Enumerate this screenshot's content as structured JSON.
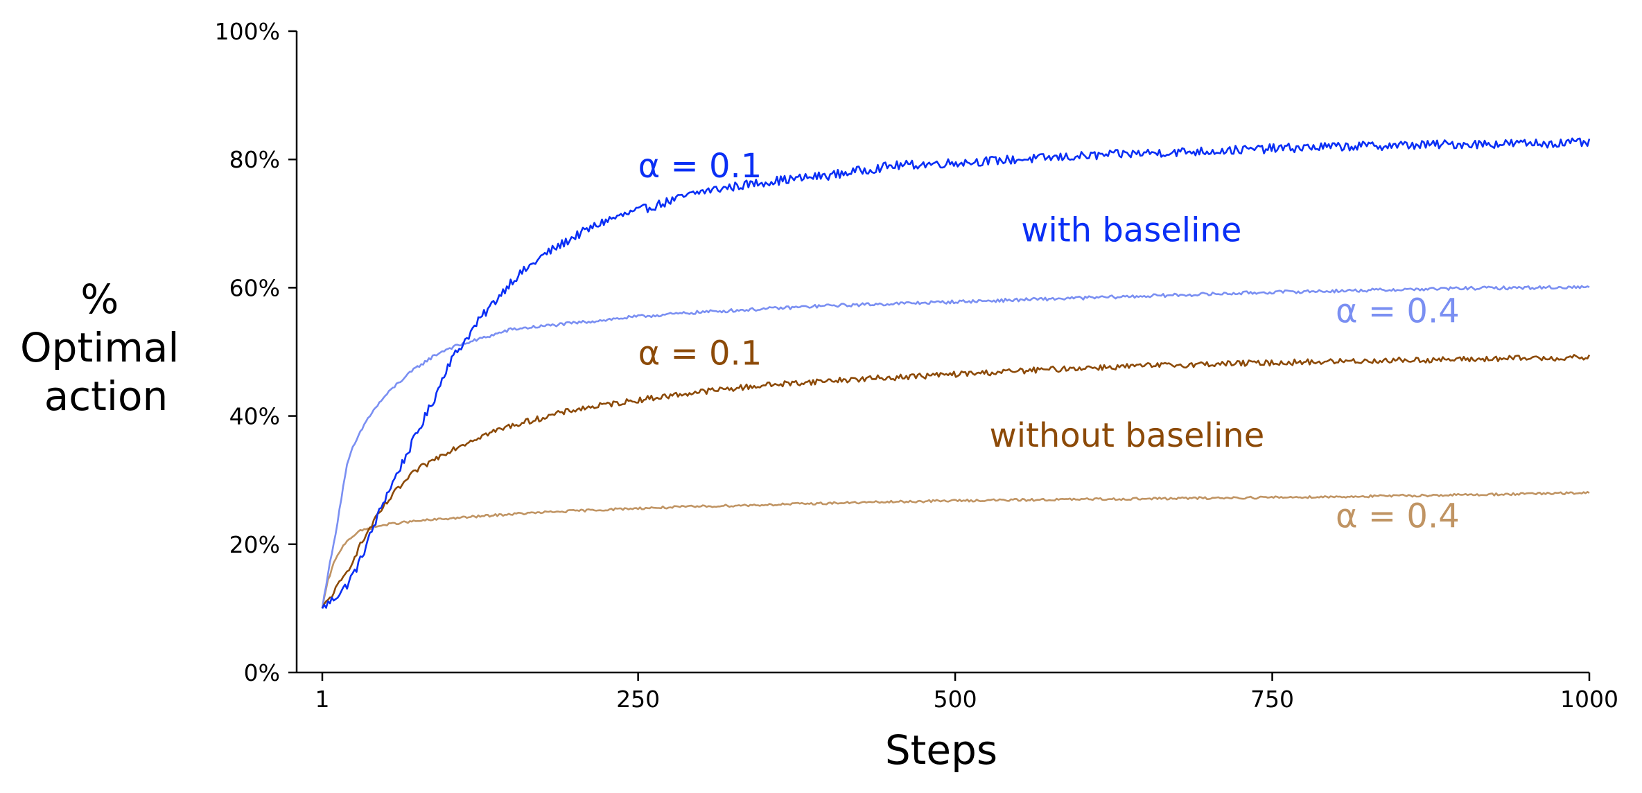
{
  "chart_data": {
    "type": "line",
    "title": "",
    "xlabel": "Steps",
    "ylabel_lines": [
      "%",
      "Optimal",
      "action"
    ],
    "xlim": [
      1,
      1000
    ],
    "ylim": [
      0,
      100
    ],
    "x_ticks": [
      1,
      250,
      500,
      750,
      1000
    ],
    "x_tick_labels": [
      "1",
      "250",
      "500",
      "750",
      "1000"
    ],
    "y_ticks": [
      0,
      20,
      40,
      60,
      80,
      100
    ],
    "y_tick_labels": [
      "0%",
      "20%",
      "40%",
      "60%",
      "80%",
      "100%"
    ],
    "grid": false,
    "series": [
      {
        "key": "baseline_alpha_0_1",
        "color": "#0a2ff5",
        "x": [
          1,
          10,
          20,
          30,
          40,
          50,
          60,
          75,
          90,
          100,
          125,
          150,
          175,
          200,
          225,
          250,
          275,
          300,
          350,
          400,
          450,
          500,
          550,
          600,
          650,
          700,
          750,
          800,
          850,
          900,
          950,
          1000
        ],
        "y": [
          10,
          11.5,
          13.5,
          17,
          22,
          27,
          31,
          37,
          43,
          48,
          55,
          61,
          65,
          68,
          70.5,
          72,
          73.5,
          75,
          76.5,
          77.5,
          79,
          79.5,
          80,
          80.5,
          81,
          81.3,
          81.7,
          82,
          82.2,
          82.4,
          82.5,
          82.6
        ],
        "noise": 0.7
      },
      {
        "key": "baseline_alpha_0_4",
        "color": "#7a8ff2",
        "x": [
          1,
          5,
          10,
          15,
          20,
          25,
          30,
          35,
          40,
          50,
          60,
          75,
          90,
          100,
          125,
          150,
          175,
          200,
          250,
          300,
          350,
          400,
          450,
          500,
          550,
          600,
          650,
          700,
          750,
          800,
          850,
          900,
          950,
          1000
        ],
        "y": [
          10,
          15,
          20,
          26,
          32,
          35,
          37,
          39,
          40.5,
          43,
          45,
          47.5,
          49.5,
          50.5,
          52,
          53.5,
          54,
          54.5,
          55.5,
          56.2,
          56.7,
          57.2,
          57.5,
          57.8,
          58.1,
          58.4,
          58.7,
          59,
          59.3,
          59.5,
          59.7,
          59.9,
          60,
          60.1
        ],
        "noise": 0.25
      },
      {
        "key": "no_baseline_alpha_0_1",
        "color": "#8c4a08",
        "x": [
          1,
          10,
          20,
          30,
          40,
          50,
          60,
          75,
          100,
          125,
          150,
          200,
          250,
          300,
          350,
          400,
          450,
          500,
          550,
          600,
          650,
          700,
          750,
          800,
          850,
          900,
          950,
          1000
        ],
        "y": [
          10,
          12.5,
          15.5,
          19.5,
          23,
          26,
          28.5,
          31.5,
          34.5,
          36.8,
          38.5,
          41,
          42.5,
          43.8,
          44.8,
          45.5,
          46,
          46.5,
          47,
          47.5,
          47.8,
          48.1,
          48.3,
          48.5,
          48.7,
          48.8,
          49,
          49.1
        ],
        "noise": 0.45
      },
      {
        "key": "no_baseline_alpha_0_4",
        "color": "#c09463",
        "x": [
          1,
          5,
          10,
          15,
          20,
          30,
          40,
          50,
          60,
          75,
          100,
          150,
          200,
          250,
          300,
          400,
          500,
          600,
          700,
          800,
          900,
          1000
        ],
        "y": [
          10,
          14,
          17,
          19,
          20.5,
          22,
          22.6,
          23,
          23.3,
          23.6,
          24,
          24.7,
          25.2,
          25.6,
          25.9,
          26.4,
          26.8,
          27,
          27.2,
          27.4,
          27.7,
          28
        ],
        "noise": 0.18
      }
    ],
    "annotations": [
      {
        "text": "α = 0.1",
        "x": 250,
        "y": 77.2,
        "color": "#0a2ff5"
      },
      {
        "text": "with baseline",
        "x": 552,
        "y": 67.2,
        "color": "#0a2ff5"
      },
      {
        "text": "α = 0.4",
        "x": 800,
        "y": 54.6,
        "color": "#7a8ff2"
      },
      {
        "text": "α = 0.1",
        "x": 250,
        "y": 48.0,
        "color": "#8c4a08"
      },
      {
        "text": "without baseline",
        "x": 527,
        "y": 35.2,
        "color": "#8c4a08"
      },
      {
        "text": "α = 0.4",
        "x": 800,
        "y": 22.6,
        "color": "#c09463"
      }
    ]
  }
}
